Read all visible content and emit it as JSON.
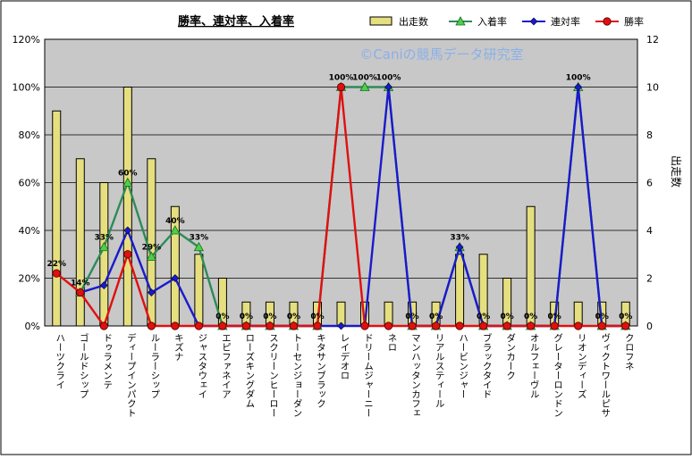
{
  "chart_data": {
    "type": "bar",
    "title": "勝率、連対率、入着率",
    "watermark": "©Caniの競馬データ研究室",
    "ylabel_right": "出走数",
    "left_axis": {
      "ylim": [
        0,
        120
      ],
      "ticks": [
        "0%",
        "20%",
        "40%",
        "60%",
        "80%",
        "100%",
        "120%"
      ]
    },
    "right_axis": {
      "ylim": [
        0,
        12
      ],
      "ticks": [
        "0",
        "2",
        "4",
        "6",
        "8",
        "10",
        "12"
      ]
    },
    "grid": true,
    "legend_position": "top-right",
    "categories": [
      "ハーツクライ",
      "ゴールドシップ",
      "ドゥラメンテ",
      "ディープインパクト",
      "ルーラーシップ",
      "キズナ",
      "ジャスタウェイ",
      "エピファネイア",
      "ローズキングダム",
      "スクリーンヒーロー",
      "トーセンジョーダン",
      "キタサンブラック",
      "レイデオロ",
      "ドリームジャーニー",
      "ネロ",
      "マンハッタンカフェ",
      "リアルスティール",
      "ハービンジャー",
      "ブラックタイド",
      "ダンカーク",
      "オルフェーヴル",
      "グレーターロンドン",
      "リオンディーズ",
      "ヴィクトワールピサ",
      "クロフネ"
    ],
    "series": [
      {
        "name": "出走数",
        "type": "bar",
        "axis": "right",
        "color": "#e6df80",
        "values": [
          9,
          7,
          6,
          10,
          7,
          5,
          3,
          2,
          1,
          1,
          1,
          1,
          1,
          1,
          1,
          1,
          1,
          3,
          3,
          2,
          5,
          1,
          1,
          1,
          1
        ]
      },
      {
        "name": "入着率",
        "type": "line",
        "axis": "left",
        "color": "#2e8b57",
        "marker": "triangle",
        "values": [
          null,
          14,
          33,
          60,
          29,
          40,
          33,
          0,
          0,
          0,
          0,
          0,
          100,
          100,
          100,
          0,
          0,
          33,
          0,
          0,
          0,
          0,
          100,
          0,
          0
        ]
      },
      {
        "name": "連対率",
        "type": "line",
        "axis": "left",
        "color": "#1a1acc",
        "marker": "diamond",
        "values": [
          null,
          14,
          17,
          40,
          14,
          20,
          0,
          0,
          0,
          0,
          0,
          0,
          0,
          0,
          100,
          0,
          0,
          33,
          0,
          0,
          0,
          0,
          100,
          0,
          0
        ]
      },
      {
        "name": "勝率",
        "type": "line",
        "axis": "left",
        "color": "#e01010",
        "marker": "circle",
        "values": [
          22,
          14,
          0,
          30,
          0,
          0,
          0,
          0,
          0,
          0,
          0,
          0,
          100,
          0,
          0,
          0,
          0,
          0,
          0,
          0,
          0,
          0,
          0,
          0,
          0
        ]
      }
    ],
    "data_labels": [
      "22%",
      "14%",
      "33%",
      "60%",
      "29%",
      "40%",
      "33%",
      "0%",
      "0%",
      "0%",
      "0%",
      "0%",
      "100%",
      "100%",
      "100%",
      "0%",
      "0%",
      "33%",
      "0%",
      "0%",
      "0%",
      "0%",
      "100%",
      "0%",
      "0%"
    ]
  }
}
